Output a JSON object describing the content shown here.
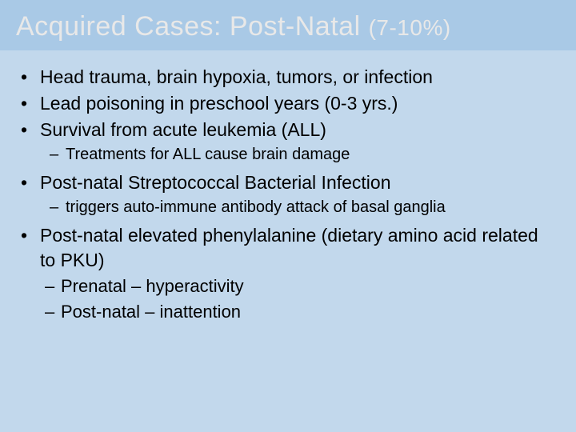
{
  "colors": {
    "slide_bg": "#c2d8ec",
    "title_bar_bg": "#a9c9e6",
    "title_color": "#e8e8e8",
    "body_text": "#000000"
  },
  "typography": {
    "title_fontsize": 34,
    "title_paren_fontsize": 28,
    "body_fontsize": 23,
    "sub_fontsize": 20,
    "sub2_fontsize": 22,
    "font_family": "Arial"
  },
  "title": {
    "main": "Acquired Cases: Post-Natal ",
    "paren": "(7-10%)"
  },
  "bullets": [
    {
      "level": 1,
      "text": "Head trauma, brain hypoxia, tumors, or infection"
    },
    {
      "level": 1,
      "text": "Lead poisoning in preschool years (0-3 yrs.)"
    },
    {
      "level": 1,
      "text": "Survival from acute leukemia (ALL)"
    },
    {
      "level": 2,
      "text": "Treatments for ALL cause brain damage"
    },
    {
      "level": 1,
      "text": "Post-natal Streptococcal Bacterial Infection"
    },
    {
      "level": 2,
      "text": "triggers auto-immune antibody attack of basal ganglia"
    },
    {
      "level": 1,
      "text": "Post-natal elevated phenylalanine (dietary amino acid related to PKU)"
    },
    {
      "level": 3,
      "text": "Prenatal – hyperactivity"
    },
    {
      "level": 3,
      "text": "Post-natal – inattention"
    }
  ]
}
